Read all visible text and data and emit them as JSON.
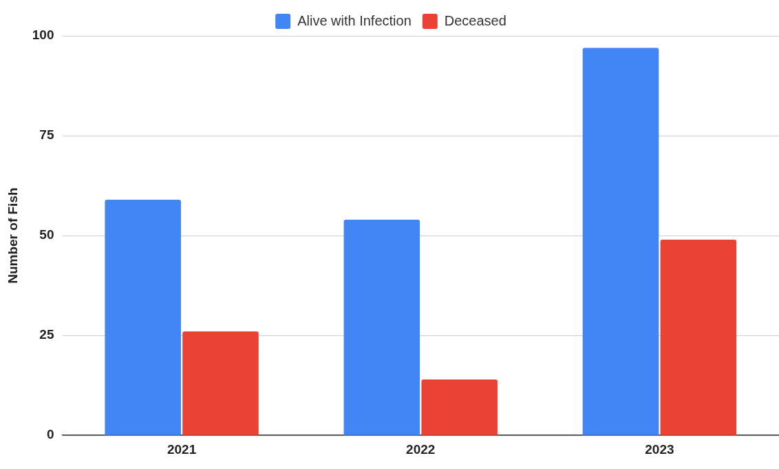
{
  "chart_data": {
    "type": "bar",
    "ylabel": "Number of Fish",
    "categories": [
      "2021",
      "2022",
      "2023"
    ],
    "series": [
      {
        "name": "Alive with Infection",
        "color": "#4285f4",
        "values": [
          59,
          54,
          97
        ]
      },
      {
        "name": "Deceased",
        "color": "#ea4335",
        "values": [
          26,
          14,
          49
        ]
      }
    ],
    "ylim": [
      0,
      100
    ],
    "yticks": [
      0,
      25,
      50,
      75,
      100
    ],
    "grid": "y",
    "legend": "top"
  }
}
